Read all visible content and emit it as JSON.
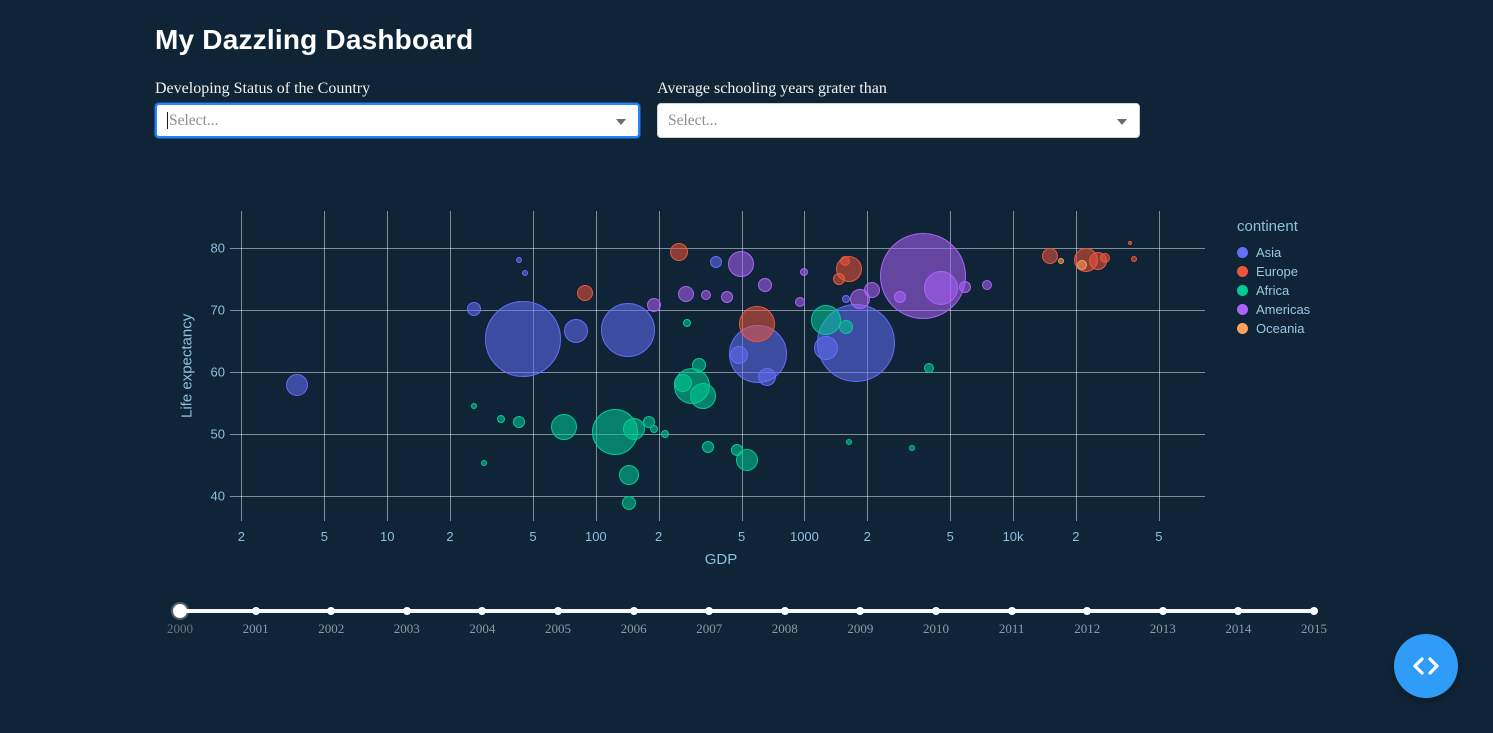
{
  "page": {
    "title": "My Dazzling Dashboard"
  },
  "filters": [
    {
      "label": "Developing Status of the Country",
      "placeholder": "Select..."
    },
    {
      "label": "Average schooling years grater than",
      "placeholder": "Select..."
    }
  ],
  "chart_data": {
    "type": "scatter",
    "title": "",
    "x_axis": {
      "label": "GDP",
      "scale": "log",
      "range_log10": [
        0.28,
        4.92
      ],
      "ticks": [
        {
          "label": "2",
          "value": 2
        },
        {
          "label": "5",
          "value": 5
        },
        {
          "label": "10",
          "value": 10
        },
        {
          "label": "2",
          "value": 20
        },
        {
          "label": "5",
          "value": 50
        },
        {
          "label": "100",
          "value": 100
        },
        {
          "label": "2",
          "value": 200
        },
        {
          "label": "5",
          "value": 500
        },
        {
          "label": "1000",
          "value": 1000
        },
        {
          "label": "2",
          "value": 2000
        },
        {
          "label": "5",
          "value": 5000
        },
        {
          "label": "10k",
          "value": 10000
        },
        {
          "label": "2",
          "value": 20000
        },
        {
          "label": "5",
          "value": 50000
        }
      ]
    },
    "y_axis": {
      "label": "Life expectancy",
      "range": [
        36,
        86
      ],
      "ticks": [
        40,
        50,
        60,
        70,
        80
      ]
    },
    "legend": {
      "title": "continent",
      "position": "right",
      "items": [
        {
          "name": "Asia",
          "color": "#636EFA"
        },
        {
          "name": "Europe",
          "color": "#EF553B"
        },
        {
          "name": "Africa",
          "color": "#00CC96"
        },
        {
          "name": "Americas",
          "color": "#AB63FA"
        },
        {
          "name": "Oceania",
          "color": "#FFA15A"
        }
      ]
    },
    "grid": true,
    "points": [
      {
        "continent": "Asia",
        "gdp": 3.7,
        "life": 57.9,
        "r": 11
      },
      {
        "continent": "Asia",
        "gdp": 45,
        "life": 65.3,
        "r": 38
      },
      {
        "continent": "Asia",
        "gdp": 80,
        "life": 66.6,
        "r": 12
      },
      {
        "continent": "Asia",
        "gdp": 143,
        "life": 66.8,
        "r": 27
      },
      {
        "continent": "Asia",
        "gdp": 26,
        "life": 70.2,
        "r": 7
      },
      {
        "continent": "Asia",
        "gdp": 43,
        "life": 78.1,
        "r": 3
      },
      {
        "continent": "Asia",
        "gdp": 46,
        "life": 76.0,
        "r": 3
      },
      {
        "continent": "Asia",
        "gdp": 600,
        "life": 63.0,
        "r": 29
      },
      {
        "continent": "Asia",
        "gdp": 660,
        "life": 59.3,
        "r": 9
      },
      {
        "continent": "Asia",
        "gdp": 1760,
        "life": 64.7,
        "r": 39
      },
      {
        "continent": "Asia",
        "gdp": 1270,
        "life": 63.9,
        "r": 12
      },
      {
        "continent": "Asia",
        "gdp": 378,
        "life": 77.8,
        "r": 6
      },
      {
        "continent": "Asia",
        "gdp": 485,
        "life": 62.8,
        "r": 9
      },
      {
        "continent": "Asia",
        "gdp": 1590,
        "life": 71.8,
        "r": 4
      },
      {
        "continent": "Europe",
        "gdp": 89,
        "life": 72.7,
        "r": 8
      },
      {
        "continent": "Europe",
        "gdp": 251,
        "life": 79.4,
        "r": 9
      },
      {
        "continent": "Europe",
        "gdp": 590,
        "life": 67.8,
        "r": 18
      },
      {
        "continent": "Europe",
        "gdp": 1640,
        "life": 76.7,
        "r": 13
      },
      {
        "continent": "Europe",
        "gdp": 1460,
        "life": 75.1,
        "r": 6
      },
      {
        "continent": "Europe",
        "gdp": 1560,
        "life": 77.9,
        "r": 5
      },
      {
        "continent": "Europe",
        "gdp": 15000,
        "life": 78.7,
        "r": 8
      },
      {
        "continent": "Europe",
        "gdp": 22300,
        "life": 78.1,
        "r": 12
      },
      {
        "continent": "Europe",
        "gdp": 25500,
        "life": 77.9,
        "r": 9
      },
      {
        "continent": "Europe",
        "gdp": 27600,
        "life": 78.4,
        "r": 5
      },
      {
        "continent": "Europe",
        "gdp": 36400,
        "life": 80.8,
        "r": 2
      },
      {
        "continent": "Europe",
        "gdp": 38100,
        "life": 78.2,
        "r": 3
      },
      {
        "continent": "Africa",
        "gdp": 70,
        "life": 51.1,
        "r": 13
      },
      {
        "continent": "Africa",
        "gdp": 123,
        "life": 50.4,
        "r": 23
      },
      {
        "continent": "Africa",
        "gdp": 152,
        "life": 50.8,
        "r": 11
      },
      {
        "continent": "Africa",
        "gdp": 180,
        "life": 51.9,
        "r": 6
      },
      {
        "continent": "Africa",
        "gdp": 190,
        "life": 50.9,
        "r": 4
      },
      {
        "continent": "Africa",
        "gdp": 43,
        "life": 51.9,
        "r": 6
      },
      {
        "continent": "Africa",
        "gdp": 35,
        "life": 52.5,
        "r": 4
      },
      {
        "continent": "Africa",
        "gdp": 26,
        "life": 54.5,
        "r": 3
      },
      {
        "continent": "Africa",
        "gdp": 29,
        "life": 45.3,
        "r": 3
      },
      {
        "continent": "Africa",
        "gdp": 144,
        "life": 43.4,
        "r": 10
      },
      {
        "continent": "Africa",
        "gdp": 145,
        "life": 38.9,
        "r": 7
      },
      {
        "continent": "Africa",
        "gdp": 290,
        "life": 57.7,
        "r": 18
      },
      {
        "continent": "Africa",
        "gdp": 327,
        "life": 56.2,
        "r": 13
      },
      {
        "continent": "Africa",
        "gdp": 262,
        "life": 58.3,
        "r": 9
      },
      {
        "continent": "Africa",
        "gdp": 313,
        "life": 61.2,
        "r": 7
      },
      {
        "continent": "Africa",
        "gdp": 345,
        "life": 48.0,
        "r": 6
      },
      {
        "continent": "Africa",
        "gdp": 530,
        "life": 45.9,
        "r": 11
      },
      {
        "continent": "Africa",
        "gdp": 475,
        "life": 47.4,
        "r": 6
      },
      {
        "continent": "Africa",
        "gdp": 1270,
        "life": 68.4,
        "r": 15
      },
      {
        "continent": "Africa",
        "gdp": 1580,
        "life": 67.3,
        "r": 7
      },
      {
        "continent": "Africa",
        "gdp": 3940,
        "life": 60.7,
        "r": 5
      },
      {
        "continent": "Africa",
        "gdp": 3260,
        "life": 47.7,
        "r": 3
      },
      {
        "continent": "Africa",
        "gdp": 1630,
        "life": 48.7,
        "r": 3
      },
      {
        "continent": "Africa",
        "gdp": 215,
        "life": 50.1,
        "r": 4
      },
      {
        "continent": "Africa",
        "gdp": 275,
        "life": 68.0,
        "r": 4
      },
      {
        "continent": "Americas",
        "gdp": 3720,
        "life": 75.5,
        "r": 43
      },
      {
        "continent": "Americas",
        "gdp": 4530,
        "life": 73.6,
        "r": 17
      },
      {
        "continent": "Americas",
        "gdp": 2880,
        "life": 72.1,
        "r": 6
      },
      {
        "continent": "Americas",
        "gdp": 5900,
        "life": 73.7,
        "r": 6
      },
      {
        "continent": "Americas",
        "gdp": 7500,
        "life": 74.1,
        "r": 5
      },
      {
        "continent": "Americas",
        "gdp": 499,
        "life": 77.4,
        "r": 13
      },
      {
        "continent": "Americas",
        "gdp": 426,
        "life": 72.2,
        "r": 6
      },
      {
        "continent": "Americas",
        "gdp": 339,
        "life": 72.5,
        "r": 5
      },
      {
        "continent": "Americas",
        "gdp": 270,
        "life": 72.6,
        "r": 8
      },
      {
        "continent": "Americas",
        "gdp": 190,
        "life": 70.9,
        "r": 7
      },
      {
        "continent": "Americas",
        "gdp": 646,
        "life": 74.0,
        "r": 7
      },
      {
        "continent": "Americas",
        "gdp": 950,
        "life": 71.3,
        "r": 5
      },
      {
        "continent": "Americas",
        "gdp": 1850,
        "life": 71.8,
        "r": 10
      },
      {
        "continent": "Americas",
        "gdp": 2110,
        "life": 73.3,
        "r": 8
      },
      {
        "continent": "Americas",
        "gdp": 1000,
        "life": 76.1,
        "r": 4
      },
      {
        "continent": "Oceania",
        "gdp": 21300,
        "life": 77.3,
        "r": 5
      },
      {
        "continent": "Oceania",
        "gdp": 17000,
        "life": 77.9,
        "r": 3
      }
    ]
  },
  "slider": {
    "years": [
      "2000",
      "2001",
      "2002",
      "2003",
      "2004",
      "2005",
      "2006",
      "2007",
      "2008",
      "2009",
      "2010",
      "2011",
      "2012",
      "2013",
      "2014",
      "2015"
    ],
    "value": "2000"
  },
  "colors": {
    "background": "#0f2537",
    "focus_border": "#2684FF",
    "dev_button": "#2F9CF7",
    "axis_text": "#8ebfdf"
  }
}
